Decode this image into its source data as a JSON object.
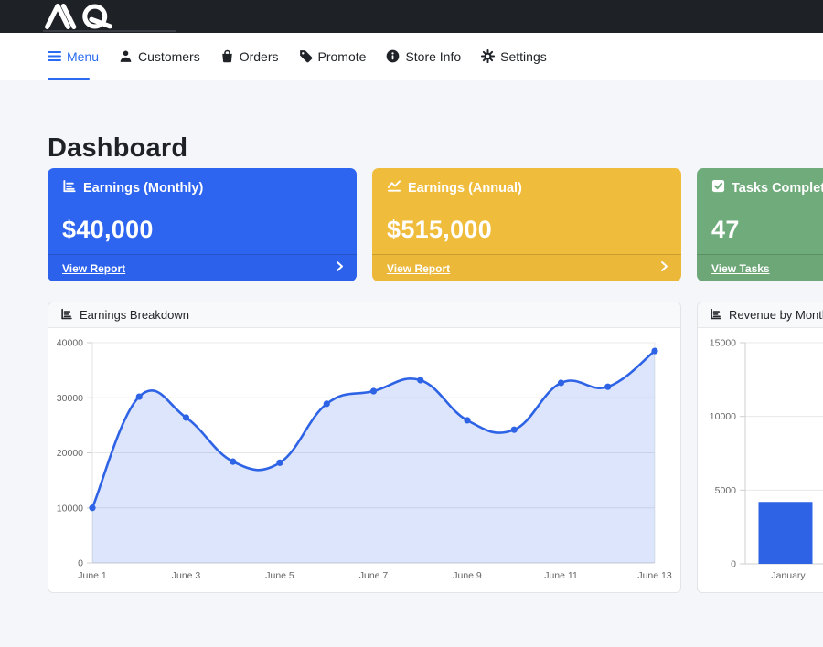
{
  "topbar": {
    "logo_text": "MQ"
  },
  "nav": {
    "menu": {
      "label": "Menu",
      "icon": "hamburger-icon",
      "active": true,
      "accent_color": "#2a6bf2"
    },
    "items": [
      {
        "label": "Customers",
        "icon": "person-icon"
      },
      {
        "label": "Orders",
        "icon": "bag-icon"
      },
      {
        "label": "Promote",
        "icon": "tag-icon"
      },
      {
        "label": "Store Info",
        "icon": "info-icon"
      },
      {
        "label": "Settings",
        "icon": "gear-icon"
      }
    ]
  },
  "page": {
    "title": "Dashboard"
  },
  "stat_cards": [
    {
      "title": "Earnings (Monthly)",
      "value": "$40,000",
      "link": "View Report",
      "color": "#2d64f0",
      "icon": "chart-bar-icon"
    },
    {
      "title": "Earnings (Annual)",
      "value": "$515,000",
      "link": "View Report",
      "color": "#f0bc3c",
      "icon": "chart-line-icon"
    },
    {
      "title": "Tasks Completed",
      "value": "47",
      "link": "View Tasks",
      "color": "#70ab7b",
      "icon": "check-square-icon"
    }
  ],
  "charts": {
    "earnings_breakdown": {
      "header": "Earnings Breakdown",
      "icon": "chart-bar-icon"
    },
    "revenue_by_month": {
      "header": "Revenue by Month",
      "icon": "chart-bar-icon"
    }
  },
  "chart_data": [
    {
      "type": "area",
      "title": "Earnings Breakdown",
      "x": [
        "June 1",
        "June 2",
        "June 3",
        "June 4",
        "June 5",
        "June 6",
        "June 7",
        "June 8",
        "June 9",
        "June 10",
        "June 11",
        "June 12",
        "June 13"
      ],
      "x_tick_labels": [
        "June 1",
        "June 3",
        "June 5",
        "June 7",
        "June 9",
        "June 11",
        "June 13"
      ],
      "values": [
        10000,
        30200,
        26400,
        18400,
        18200,
        28900,
        31200,
        33200,
        25900,
        24200,
        32700,
        32000,
        38500
      ],
      "ylim": [
        0,
        40000
      ],
      "yticks": [
        0,
        10000,
        20000,
        30000,
        40000
      ],
      "line_color": "#2e63e6",
      "fill_color": "rgba(46,99,230,0.17)",
      "point_color": "#2e63e6",
      "grid": true,
      "legend": "none"
    },
    {
      "type": "bar",
      "title": "Revenue by Month",
      "categories": [
        "January"
      ],
      "values": [
        4200
      ],
      "ylim": [
        0,
        15000
      ],
      "yticks": [
        0,
        5000,
        10000,
        15000
      ],
      "bar_color": "#2e63e6",
      "grid": true,
      "legend": "none"
    }
  ]
}
